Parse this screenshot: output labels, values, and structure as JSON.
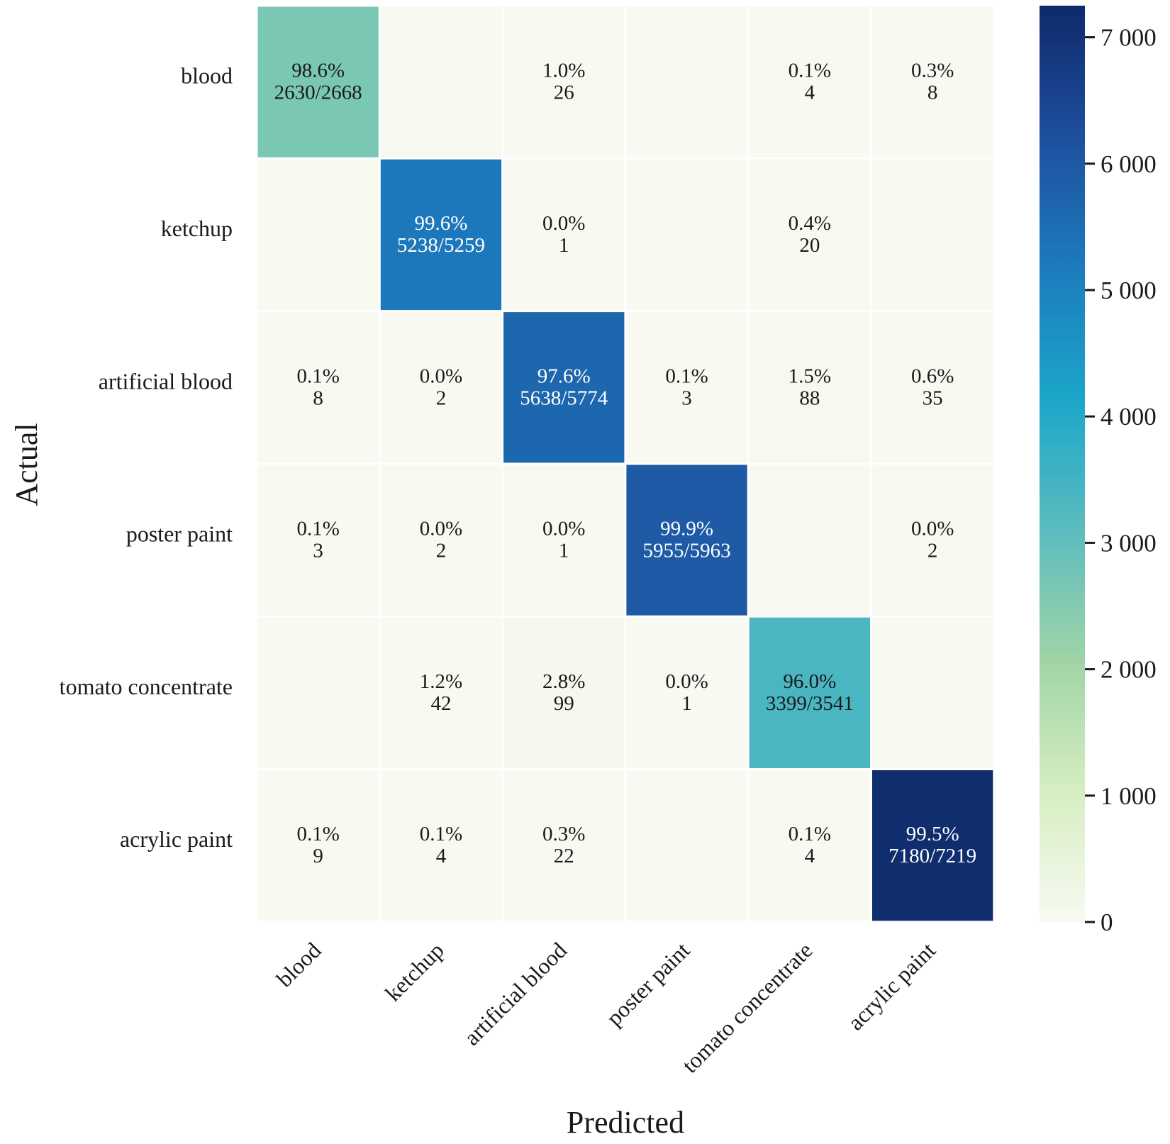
{
  "chart_data": {
    "type": "heatmap",
    "xlabel": "Predicted",
    "ylabel": "Actual",
    "row_labels": [
      "blood",
      "ketchup",
      "artificial blood",
      "poster paint",
      "tomato concentrate",
      "acrylic paint"
    ],
    "col_labels": [
      "blood",
      "ketchup",
      "artificial blood",
      "poster paint",
      "tomato concentrate",
      "acrylic paint"
    ],
    "counts": [
      [
        2630,
        null,
        26,
        null,
        4,
        8
      ],
      [
        null,
        5238,
        1,
        null,
        20,
        null
      ],
      [
        8,
        2,
        5638,
        3,
        88,
        35
      ],
      [
        3,
        2,
        1,
        5955,
        null,
        2
      ],
      [
        null,
        42,
        99,
        1,
        3399,
        null
      ],
      [
        9,
        4,
        22,
        null,
        4,
        7180
      ]
    ],
    "cell_labels": [
      [
        [
          "98.6%",
          "2630/2668"
        ],
        null,
        [
          "1.0%",
          "26"
        ],
        null,
        [
          "0.1%",
          "4"
        ],
        [
          "0.3%",
          "8"
        ]
      ],
      [
        null,
        [
          "99.6%",
          "5238/5259"
        ],
        [
          "0.0%",
          "1"
        ],
        null,
        [
          "0.4%",
          "20"
        ],
        null
      ],
      [
        [
          "0.1%",
          "8"
        ],
        [
          "0.0%",
          "2"
        ],
        [
          "97.6%",
          "5638/5774"
        ],
        [
          "0.1%",
          "3"
        ],
        [
          "1.5%",
          "88"
        ],
        [
          "0.6%",
          "35"
        ]
      ],
      [
        [
          "0.1%",
          "3"
        ],
        [
          "0.0%",
          "2"
        ],
        [
          "0.0%",
          "1"
        ],
        [
          "99.9%",
          "5955/5963"
        ],
        null,
        [
          "0.0%",
          "2"
        ]
      ],
      [
        null,
        [
          "1.2%",
          "42"
        ],
        [
          "2.8%",
          "99"
        ],
        [
          "0.0%",
          "1"
        ],
        [
          "96.0%",
          "3399/3541"
        ],
        null
      ],
      [
        [
          "0.1%",
          "9"
        ],
        [
          "0.1%",
          "4"
        ],
        [
          "0.3%",
          "22"
        ],
        null,
        [
          "0.1%",
          "4"
        ],
        [
          "99.5%",
          "7180/7219"
        ]
      ]
    ],
    "colorbar": {
      "min": 0,
      "max": 7250,
      "ticks": [
        0,
        1000,
        2000,
        3000,
        4000,
        5000,
        6000,
        7000
      ],
      "tick_labels": [
        "0",
        "1 000",
        "2 000",
        "3 000",
        "4 000",
        "5 000",
        "6 000",
        "7 000"
      ],
      "colormap": "YlGnBu",
      "colors": [
        "#f8faf2",
        "#d6eec2",
        "#9fd4a6",
        "#5bbcbf",
        "#1ba6c9",
        "#1d7bbd",
        "#1e4f9e",
        "#0f2a6b"
      ]
    }
  }
}
